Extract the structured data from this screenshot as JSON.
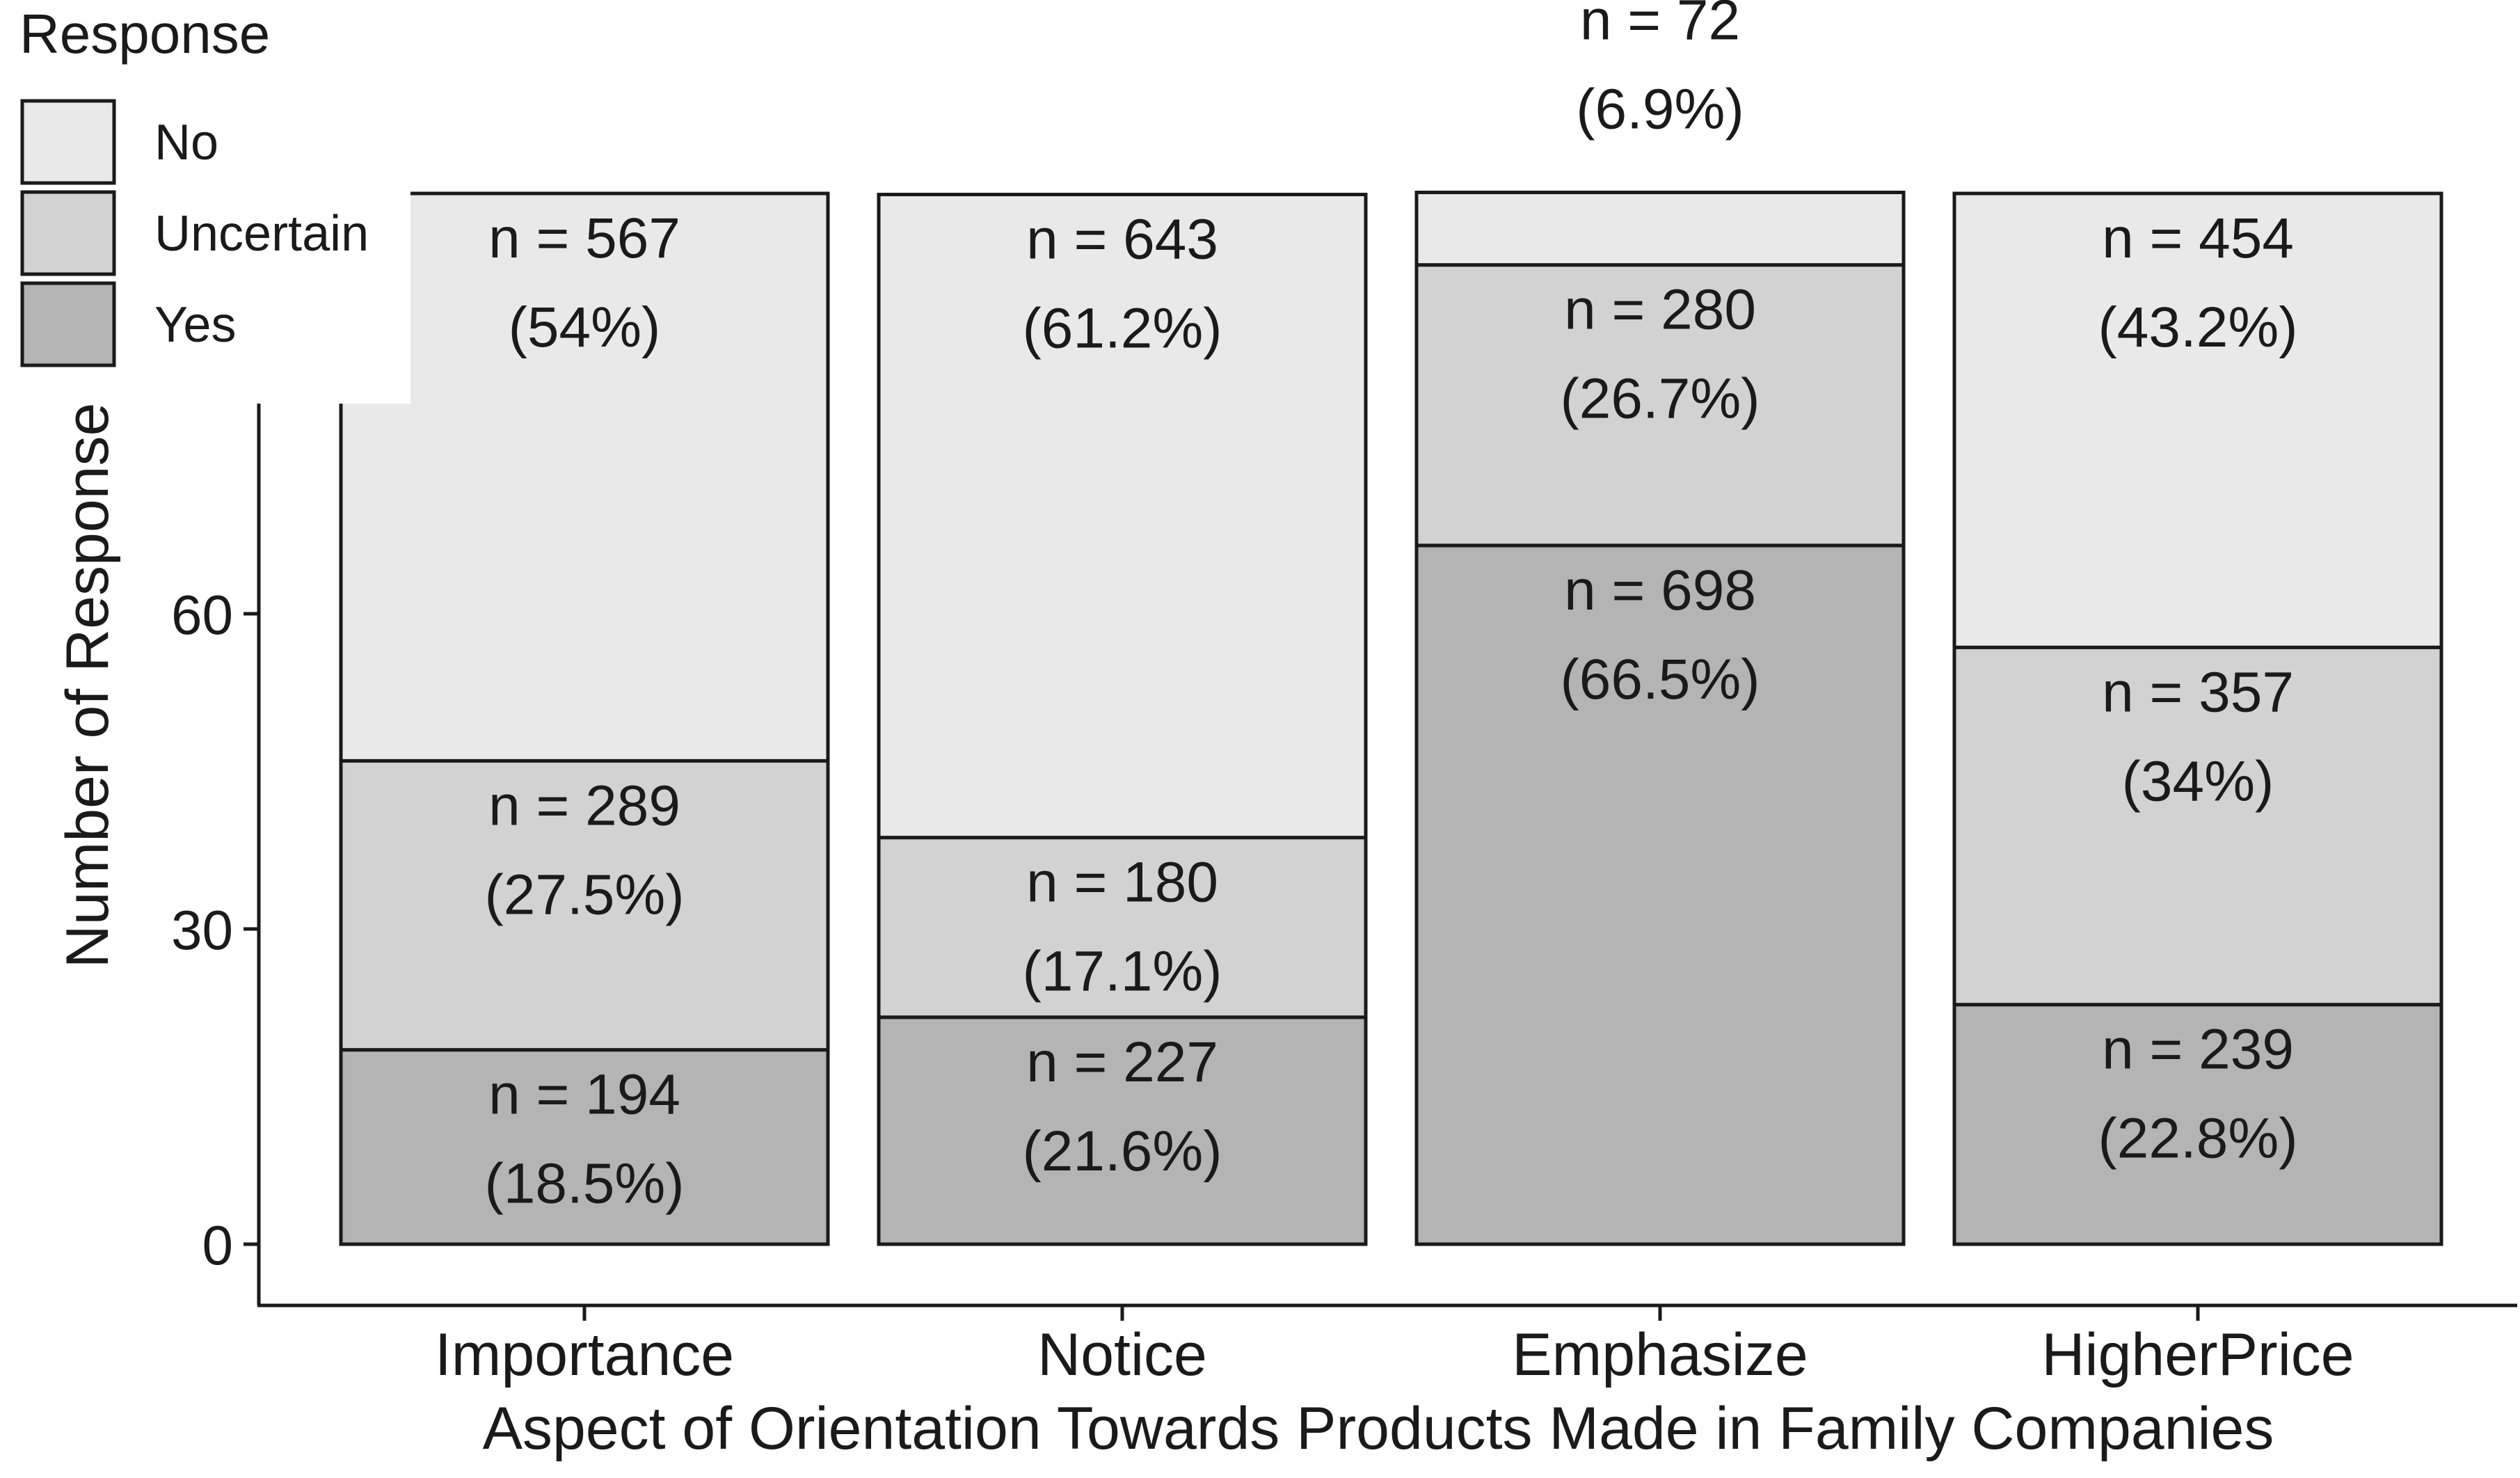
{
  "chart_data": {
    "type": "bar",
    "stacked": true,
    "title": "",
    "xlabel": "Aspect of Orientation Towards Products Made in Family Companies",
    "ylabel": "Number of Response",
    "categories": [
      "Importance",
      "Notice",
      "Emphasize",
      "HigherPrice"
    ],
    "y_ticks": [
      0,
      30,
      60
    ],
    "ylim": [
      0,
      100
    ],
    "grid": false,
    "legend": {
      "title": "Response",
      "position": "top-left"
    },
    "series": [
      {
        "name": "Yes",
        "color": "#b4b4b4",
        "values": [
          18.5,
          21.6,
          66.5,
          22.8
        ],
        "labels": [
          [
            "n = 194",
            "(18.5%)"
          ],
          [
            "n = 227",
            "(21.6%)"
          ],
          [
            "n = 698",
            "(66.5%)"
          ],
          [
            "n = 239",
            "(22.8%)"
          ]
        ]
      },
      {
        "name": "Uncertain",
        "color": "#d2d2d2",
        "values": [
          27.5,
          17.1,
          26.7,
          34.0
        ],
        "labels": [
          [
            "n = 289",
            "(27.5%)"
          ],
          [
            "n = 180",
            "(17.1%)"
          ],
          [
            "n = 280",
            "(26.7%)"
          ],
          [
            "n = 357",
            "(34%)"
          ]
        ]
      },
      {
        "name": "No",
        "color": "#e9e9e9",
        "values": [
          54.0,
          61.2,
          6.9,
          43.2
        ],
        "labels": [
          [
            "n = 567",
            "(54%)"
          ],
          [
            "n = 643",
            "(61.2%)"
          ],
          [
            "n = 72",
            "(6.9%)"
          ],
          [
            "n = 454",
            "(43.2%)"
          ]
        ]
      }
    ]
  }
}
